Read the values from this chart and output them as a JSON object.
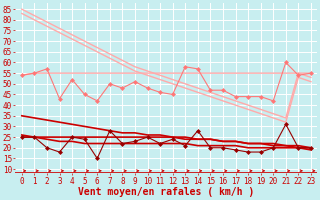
{
  "x": [
    0,
    1,
    2,
    3,
    4,
    5,
    6,
    7,
    8,
    9,
    10,
    11,
    12,
    13,
    14,
    15,
    16,
    17,
    18,
    19,
    20,
    21,
    22,
    23
  ],
  "background_color": "#c8eef0",
  "grid_color": "#ffffff",
  "xlabel": "Vent moyen/en rafales ( km/h )",
  "xlabel_color": "#cc0000",
  "xlabel_fontsize": 7,
  "tick_color": "#cc0000",
  "tick_fontsize": 5.5,
  "yticks": [
    10,
    15,
    20,
    25,
    30,
    35,
    40,
    45,
    50,
    55,
    60,
    65,
    70,
    75,
    80,
    85
  ],
  "ylim": [
    8,
    88
  ],
  "xlim": [
    -0.5,
    23.5
  ],
  "lines": [
    {
      "label": "top_diagonal_light",
      "color": "#ffaaaa",
      "lw": 1.0,
      "marker": null,
      "y": [
        85,
        82,
        79,
        76,
        73,
        70,
        67,
        64,
        61,
        58,
        56,
        54,
        52,
        50,
        48,
        46,
        44,
        42,
        40,
        38,
        36,
        34,
        55,
        53
      ]
    },
    {
      "label": "top_diagonal_light2",
      "color": "#ffaaaa",
      "lw": 1.0,
      "marker": null,
      "y": [
        83,
        80,
        77,
        74,
        71,
        68,
        65,
        62,
        59,
        56,
        54,
        52,
        50,
        48,
        46,
        44,
        42,
        40,
        38,
        36,
        34,
        32,
        53,
        51
      ]
    },
    {
      "label": "flat_light",
      "color": "#ffaaaa",
      "lw": 1.0,
      "marker": null,
      "y": [
        54,
        55,
        55,
        55,
        55,
        55,
        55,
        55,
        55,
        55,
        55,
        55,
        55,
        55,
        55,
        55,
        55,
        55,
        55,
        55,
        55,
        55,
        55,
        55
      ]
    },
    {
      "label": "wiggly_pink_markers",
      "color": "#ff7777",
      "lw": 0.8,
      "marker": "D",
      "markersize": 2.0,
      "y": [
        54,
        55,
        57,
        43,
        52,
        45,
        42,
        50,
        48,
        51,
        48,
        46,
        45,
        58,
        57,
        47,
        47,
        44,
        44,
        44,
        42,
        60,
        54,
        55
      ]
    },
    {
      "label": "dark_diagonal1",
      "color": "#cc0000",
      "lw": 1.2,
      "marker": null,
      "y": [
        35,
        34,
        33,
        32,
        31,
        30,
        29,
        28,
        27,
        27,
        26,
        26,
        25,
        25,
        24,
        24,
        23,
        23,
        22,
        22,
        21,
        21,
        20,
        20
      ]
    },
    {
      "label": "dark_flat",
      "color": "#cc0000",
      "lw": 1.2,
      "marker": null,
      "y": [
        25,
        25,
        25,
        25,
        25,
        25,
        25,
        25,
        25,
        25,
        25,
        25,
        25,
        24,
        24,
        24,
        23,
        23,
        22,
        22,
        22,
        21,
        21,
        20
      ]
    },
    {
      "label": "dark_diagonal2",
      "color": "#cc0000",
      "lw": 1.2,
      "marker": null,
      "y": [
        26,
        25,
        24,
        23,
        23,
        22,
        22,
        22,
        22,
        22,
        22,
        22,
        22,
        22,
        21,
        21,
        21,
        21,
        20,
        20,
        20,
        20,
        20,
        19
      ]
    },
    {
      "label": "dark_wiggly_markers",
      "color": "#990000",
      "lw": 0.8,
      "marker": "D",
      "markersize": 2.0,
      "y": [
        25,
        25,
        20,
        18,
        25,
        24,
        15,
        28,
        22,
        23,
        25,
        22,
        24,
        21,
        28,
        20,
        20,
        19,
        18,
        18,
        20,
        31,
        20,
        20
      ]
    }
  ]
}
